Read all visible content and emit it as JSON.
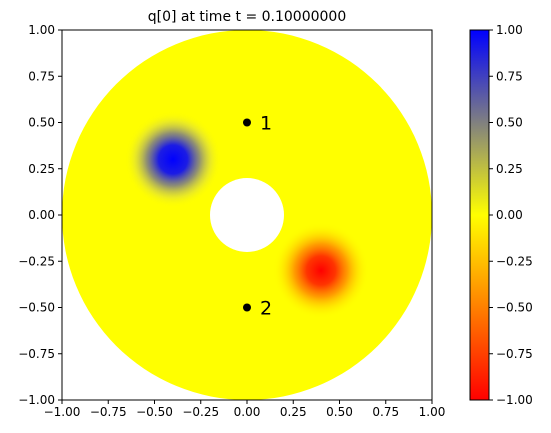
{
  "chart_data": {
    "type": "heatmap",
    "title": "q[0] at time t =     0.10000000",
    "xlim": [
      -1.0,
      1.0
    ],
    "ylim": [
      -1.0,
      1.0
    ],
    "x_ticks": [
      "−1.00",
      "−0.75",
      "−0.50",
      "−0.25",
      "0.00",
      "0.25",
      "0.50",
      "0.75",
      "1.00"
    ],
    "y_ticks": [
      "−1.00",
      "−0.75",
      "−0.50",
      "−0.25",
      "0.00",
      "0.25",
      "0.50",
      "0.75",
      "1.00"
    ],
    "domain": {
      "shape": "annulus",
      "inner_radius": 0.2,
      "outer_radius": 1.0
    },
    "field": {
      "background_value": 0.0,
      "blobs": [
        {
          "x": -0.4,
          "y": 0.3,
          "value": 1.0
        },
        {
          "x": 0.4,
          "y": -0.3,
          "value": -1.0
        }
      ]
    },
    "markers": [
      {
        "label": "1",
        "x": 0.0,
        "y": 0.5
      },
      {
        "label": "2",
        "x": 0.0,
        "y": -0.5
      }
    ],
    "colorbar": {
      "range": [
        -1.0,
        1.0
      ],
      "ticks": [
        "1.00",
        "0.75",
        "0.50",
        "0.25",
        "0.00",
        "−0.25",
        "−0.50",
        "−0.75",
        "−1.00"
      ],
      "colors": {
        "min": "#ff0000",
        "mid": "#ffff00",
        "max": "#0000ff"
      }
    },
    "grid": false
  }
}
